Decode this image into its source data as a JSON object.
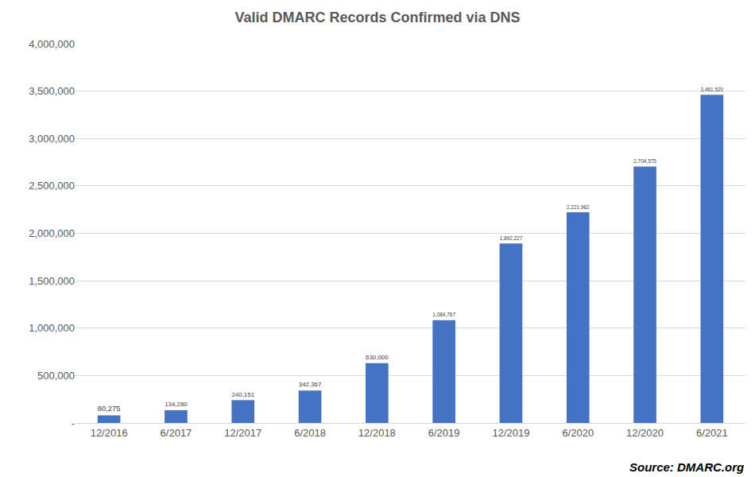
{
  "chart_data": {
    "type": "bar",
    "title": "Valid DMARC Records Confirmed via DNS",
    "categories": [
      "12/2016",
      "6/2017",
      "12/2017",
      "6/2018",
      "12/2018",
      "6/2019",
      "12/2019",
      "6/2020",
      "12/2020",
      "6/2021"
    ],
    "values": [
      80275,
      134280,
      240151,
      342367,
      630000,
      1084767,
      1892227,
      2221962,
      2704575,
      3461520
    ],
    "value_labels": [
      "80,275",
      "134,280",
      "240,151",
      "342,367",
      "630,000",
      "1,084,767",
      "1,892,227",
      "2,221,962",
      "2,704,575",
      "3,461,520"
    ],
    "color": "#4472c4",
    "ylim": [
      0,
      4000000
    ],
    "yticks": [
      {
        "value": 0,
        "label": "-"
      },
      {
        "value": 500000,
        "label": "500,000"
      },
      {
        "value": 1000000,
        "label": "1,000,000"
      },
      {
        "value": 1500000,
        "label": "1,500,000"
      },
      {
        "value": 2000000,
        "label": "2,000,000"
      },
      {
        "value": 2500000,
        "label": "2,500,000"
      },
      {
        "value": 3000000,
        "label": "3,000,000"
      },
      {
        "value": 3500000,
        "label": "3,500,000"
      },
      {
        "value": 4000000,
        "label": "4,000,000"
      }
    ],
    "grid": true,
    "data_labels": true,
    "annotations": [
      "Source: DMARC.org"
    ]
  }
}
